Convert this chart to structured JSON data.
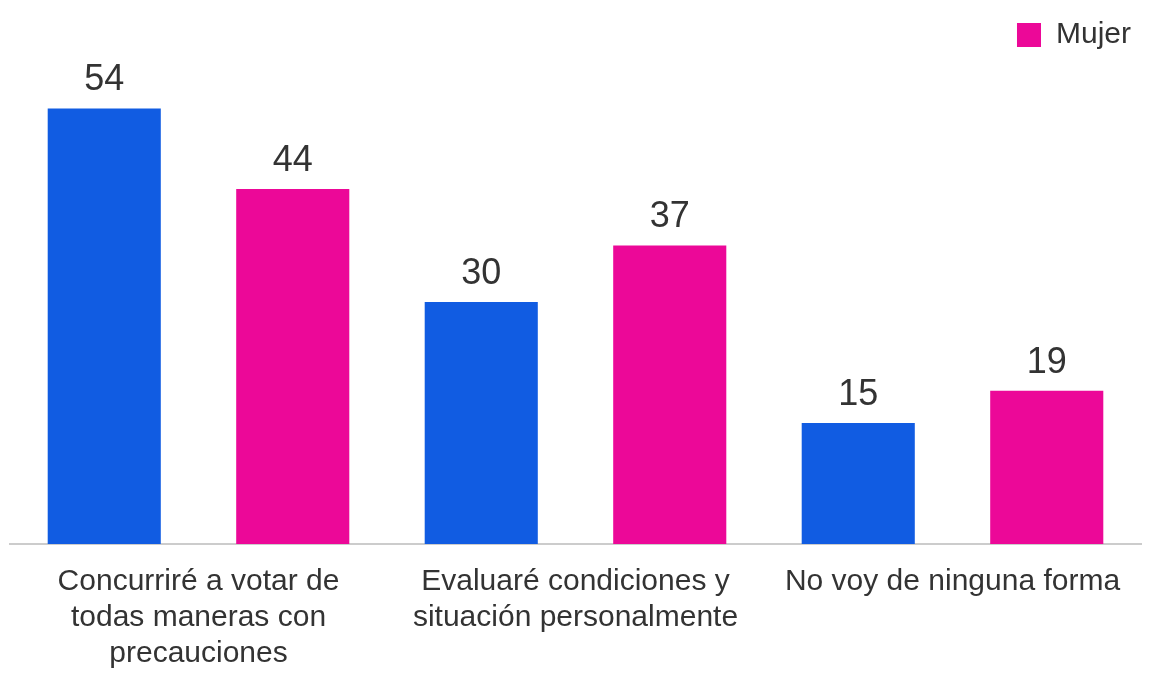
{
  "chart_data": {
    "type": "bar",
    "categories": [
      "Concurriré a votar de todas maneras con precauciones",
      "Evaluaré condiciones y situación personalmente",
      "No voy de ninguna forma"
    ],
    "series": [
      {
        "color": "#115ce2",
        "values": [
          54,
          30,
          15
        ]
      },
      {
        "name": "Mujer",
        "color": "#ec0898",
        "values": [
          44,
          37,
          19
        ]
      }
    ],
    "data_labels": true,
    "legend": "top right",
    "grid": false
  }
}
